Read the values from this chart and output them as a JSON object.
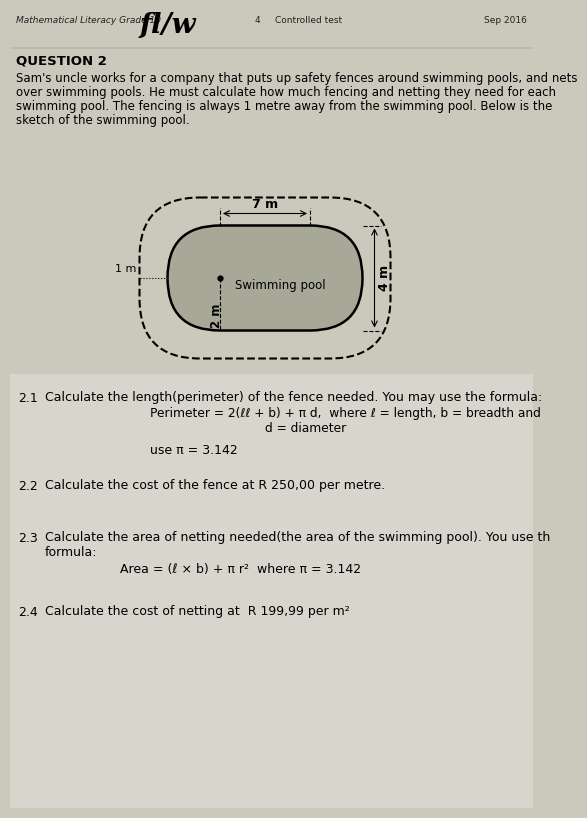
{
  "bg_color": "#cbc8bc",
  "header_left": "Mathematical Literacy Grade 10",
  "header_center_num": "4",
  "header_center_label": "Controlled test",
  "header_right": "Sep 2016",
  "handwriting": "fl/w",
  "question_title": "QUESTION 2",
  "intro_line1": "Sam's uncle works for a company that puts up safety fences around swimming pools, and nets",
  "intro_line2": "over swimming pools. He must calculate how much fencing and netting they need for each",
  "intro_line3": "swimming pool. The fencing is always 1 metre away from the swimming pool. Below is the",
  "intro_line4": "sketch of the swimming pool.",
  "pool_label": "Swimming pool",
  "pool_length_label": "7 m",
  "pool_breadth_label": "4 m",
  "fence_gap_label": "1 m",
  "radius_label": "2 m",
  "q21_num": "2.1",
  "q21_text": "Calculate the length(perimeter) of the fence needed. You may use the formula:",
  "q21_formula_line1": "Perimeter = 2(ℓℓ + b) + π d,  where ℓ = length, b = breadth and",
  "q21_formula_line2": "d = diameter",
  "q21_use": "use π = 3.142",
  "q22_num": "2.2",
  "q22_text": "Calculate the cost of the fence at R 250,00 per metre.",
  "q23_num": "2.3",
  "q23_text_line1": "Calculate the area of netting needed(the area of the swimming pool). You use th",
  "q23_text_line2": "formula:",
  "q23_formula": "Area = (ℓ × b) + π r²  where π = 3.142",
  "q24_num": "2.4",
  "q24_text": "Calculate the cost of netting at  R 199,99 per m²"
}
